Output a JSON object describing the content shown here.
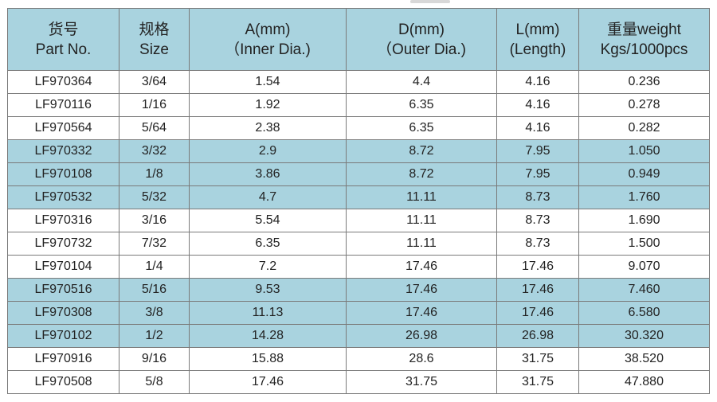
{
  "table": {
    "headers": [
      {
        "line1": "货号",
        "line2": "Part No."
      },
      {
        "line1": "规格",
        "line2": "Size"
      },
      {
        "line1": "A(mm)",
        "line2": "（Inner Dia.)"
      },
      {
        "line1": "D(mm)",
        "line2": "（Outer Dia.)"
      },
      {
        "line1": "L(mm)",
        "line2": "(Length)"
      },
      {
        "line1": "重量weight",
        "line2": "Kgs/1000pcs"
      }
    ],
    "rows": [
      {
        "shaded": false,
        "cells": [
          "LF970364",
          "3/64",
          "1.54",
          "4.4",
          "4.16",
          "0.236"
        ]
      },
      {
        "shaded": false,
        "cells": [
          "LF970116",
          "1/16",
          "1.92",
          "6.35",
          "4.16",
          "0.278"
        ]
      },
      {
        "shaded": false,
        "cells": [
          "LF970564",
          "5/64",
          "2.38",
          "6.35",
          "4.16",
          "0.282"
        ]
      },
      {
        "shaded": true,
        "cells": [
          "LF970332",
          "3/32",
          "2.9",
          "8.72",
          "7.95",
          "1.050"
        ]
      },
      {
        "shaded": true,
        "cells": [
          "LF970108",
          "1/8",
          "3.86",
          "8.72",
          "7.95",
          "0.949"
        ]
      },
      {
        "shaded": true,
        "cells": [
          "LF970532",
          "5/32",
          "4.7",
          "11.11",
          "8.73",
          "1.760"
        ]
      },
      {
        "shaded": false,
        "cells": [
          "LF970316",
          "3/16",
          "5.54",
          "11.11",
          "8.73",
          "1.690"
        ]
      },
      {
        "shaded": false,
        "cells": [
          "LF970732",
          "7/32",
          "6.35",
          "11.11",
          "8.73",
          "1.500"
        ]
      },
      {
        "shaded": false,
        "cells": [
          "LF970104",
          "1/4",
          "7.2",
          "17.46",
          "17.46",
          "9.070"
        ]
      },
      {
        "shaded": true,
        "cells": [
          "LF970516",
          "5/16",
          "9.53",
          "17.46",
          "17.46",
          "7.460"
        ]
      },
      {
        "shaded": true,
        "cells": [
          "LF970308",
          "3/8",
          "11.13",
          "17.46",
          "17.46",
          "6.580"
        ]
      },
      {
        "shaded": true,
        "cells": [
          "LF970102",
          "1/2",
          "14.28",
          "26.98",
          "26.98",
          "30.320"
        ]
      },
      {
        "shaded": false,
        "cells": [
          "LF970916",
          "9/16",
          "15.88",
          "28.6",
          "31.75",
          "38.520"
        ]
      },
      {
        "shaded": false,
        "cells": [
          "LF970508",
          "5/8",
          "17.46",
          "31.75",
          "31.75",
          "47.880"
        ]
      }
    ]
  },
  "colors": {
    "header_bg": "#a9d3df",
    "shaded_row_bg": "#a9d3df",
    "border": "#7a7a7a",
    "text": "#222222"
  }
}
